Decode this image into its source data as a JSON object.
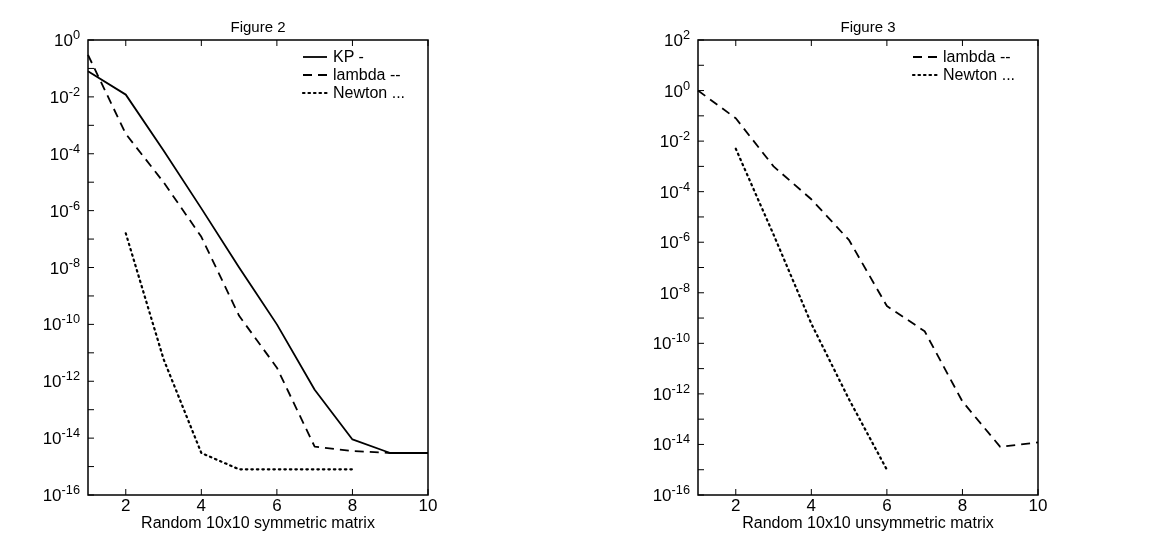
{
  "chart_data": [
    {
      "type": "line",
      "title": "Figure 2",
      "xlabel": "Random 10x10 symmetric matrix",
      "log": "y",
      "legend": "top right",
      "grid": false,
      "x": [
        1,
        2,
        3,
        4,
        5,
        6,
        7,
        8,
        9,
        10
      ],
      "xlim": [
        1,
        10
      ],
      "xticks": [
        2,
        4,
        6,
        8,
        10
      ],
      "ylim": [
        1e-16,
        1
      ],
      "yticks": [
        {
          "value": 1e-16,
          "label": "10$^{-16}$"
        },
        {
          "value": 1e-15,
          "label": null
        },
        {
          "value": 1e-14,
          "label": "10$^{-14}$"
        },
        {
          "value": 1e-13,
          "label": null
        },
        {
          "value": 1e-12,
          "label": "10$^{-12}$"
        },
        {
          "value": 1e-11,
          "label": null
        },
        {
          "value": 1e-10,
          "label": "10$^{-10}$"
        },
        {
          "value": 1e-09,
          "label": null
        },
        {
          "value": 1e-08,
          "label": "10$^{-8}$"
        },
        {
          "value": 1e-07,
          "label": null
        },
        {
          "value": 1e-06,
          "label": "10$^{-6}$"
        },
        {
          "value": 1e-05,
          "label": null
        },
        {
          "value": 0.0001,
          "label": "10$^{-4}$"
        },
        {
          "value": 0.001,
          "label": null
        },
        {
          "value": 0.01,
          "label": "10$^{-2}$"
        },
        {
          "value": 0.1,
          "label": null
        },
        {
          "value": 1,
          "label": "10$^{0}$"
        }
      ],
      "series": [
        {
          "name": "KP -",
          "color": "#000000",
          "line_style": "solid",
          "values": [
            0.08,
            0.012,
            0.00013,
            1.2e-06,
            1e-08,
            1e-10,
            5e-13,
            9e-15,
            3e-15,
            3e-15
          ]
        },
        {
          "name": "lambda --",
          "color": "#000000",
          "line_style": "dashed",
          "values": [
            0.3,
            0.0005,
            1e-05,
            1.2e-07,
            2e-10,
            3e-12,
            5e-15,
            3.5e-15,
            3e-15,
            3e-15
          ]
        },
        {
          "name": "Newton ...",
          "color": "#000000",
          "line_style": "dotted",
          "values": [
            null,
            1.6e-07,
            6e-12,
            3e-15,
            8e-16,
            8e-16,
            8e-16,
            8e-16,
            null,
            null
          ]
        }
      ]
    },
    {
      "type": "line",
      "title": "Figure 3",
      "xlabel": "Random 10x10 unsymmetric matrix",
      "log": "y",
      "legend": "top right",
      "grid": false,
      "x": [
        1,
        2,
        3,
        4,
        5,
        6,
        7,
        8,
        9,
        10
      ],
      "xlim": [
        1,
        10
      ],
      "xticks": [
        2,
        4,
        6,
        8,
        10
      ],
      "ylim": [
        1e-16,
        100
      ],
      "yticks": [
        {
          "value": 1e-16,
          "label": "10$^{-16}$"
        },
        {
          "value": 1e-15,
          "label": null
        },
        {
          "value": 1e-14,
          "label": "10$^{-14}$"
        },
        {
          "value": 1e-13,
          "label": null
        },
        {
          "value": 1e-12,
          "label": "10$^{-12}$"
        },
        {
          "value": 1e-11,
          "label": null
        },
        {
          "value": 1e-10,
          "label": "10$^{-10}$"
        },
        {
          "value": 1e-09,
          "label": null
        },
        {
          "value": 1e-08,
          "label": "10$^{-8}$"
        },
        {
          "value": 1e-07,
          "label": null
        },
        {
          "value": 1e-06,
          "label": "10$^{-6}$"
        },
        {
          "value": 1e-05,
          "label": null
        },
        {
          "value": 0.0001,
          "label": "10$^{-4}$"
        },
        {
          "value": 0.001,
          "label": null
        },
        {
          "value": 0.01,
          "label": "10$^{-2}$"
        },
        {
          "value": 0.1,
          "label": null
        },
        {
          "value": 1,
          "label": "10$^{0}$"
        },
        {
          "value": 10,
          "label": null
        },
        {
          "value": 100,
          "label": "10$^{2}$"
        }
      ],
      "series": [
        {
          "name": "lambda --",
          "color": "#000000",
          "line_style": "dashed",
          "values": [
            1,
            0.08,
            0.001,
            5e-05,
            1.2e-06,
            3e-09,
            3e-10,
            5e-13,
            8e-15,
            1.2e-14
          ]
        },
        {
          "name": "Newton ...",
          "color": "#000000",
          "line_style": "dotted",
          "values": [
            null,
            0.005,
            2e-06,
            6e-10,
            6e-13,
            1e-15,
            null,
            null,
            null,
            null
          ]
        }
      ]
    }
  ]
}
